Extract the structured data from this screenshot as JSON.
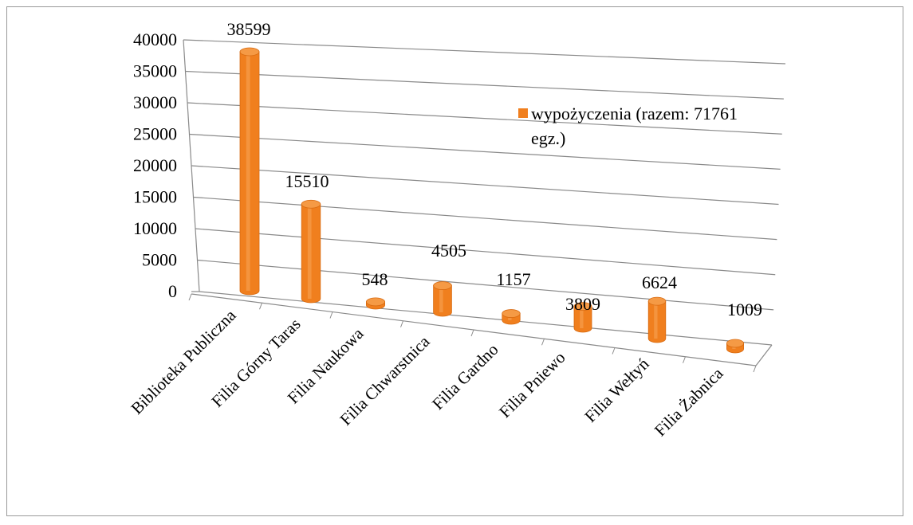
{
  "chart_data": {
    "type": "bar",
    "categories": [
      "Biblioteka Publiczna",
      "Filia Górny Taras",
      "Filia Naukowa",
      "Filia Chwarstnica",
      "Filia Gardno",
      "Filia Pniewo",
      "Filia Wełtyń",
      "Filia Żabnica"
    ],
    "series": [
      {
        "name": "wypożyczenia (razem: 71761 egz.)",
        "values": [
          38599,
          15510,
          548,
          4505,
          1157,
          3809,
          6624,
          1009
        ],
        "color": "#f07f1e"
      }
    ],
    "ylim": [
      0,
      40000
    ],
    "yticks": [
      "0",
      "5000",
      "10000",
      "15000",
      "20000",
      "25000",
      "30000",
      "35000",
      "40000"
    ],
    "data_labels": [
      "38599",
      "15510",
      "548",
      "4505",
      "1157",
      "3809",
      "6624",
      "1009"
    ],
    "legend": {
      "position": "right",
      "text_line1": "wypożyczenia (razem: 71761",
      "text_line2": "egz.)"
    },
    "grid": true,
    "style": "3d-cylinder"
  }
}
